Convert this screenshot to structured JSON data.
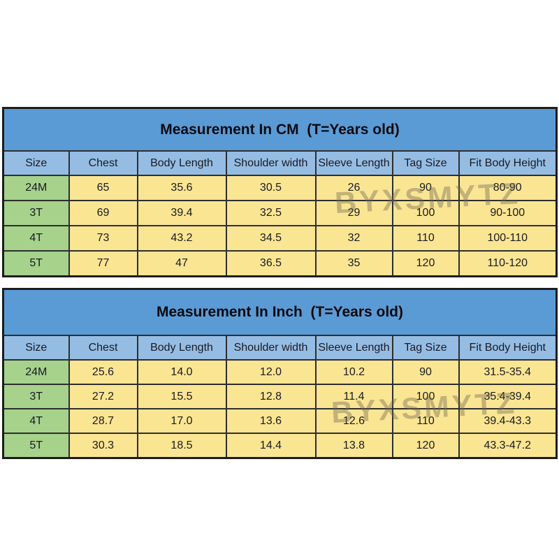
{
  "colors": {
    "title_band": "#5b9bd5",
    "header_row": "#95bde4",
    "size_column": "#a6d28c",
    "data_cell": "#fae593",
    "border": "#2e2e2e",
    "text": "#1a1a22",
    "watermark": "#6f6552"
  },
  "watermark": {
    "text": "BYXSMYTZ"
  },
  "chart_data": [
    {
      "type": "table",
      "title": "Measurement In CM  (T=Years old)",
      "columns": [
        "Size",
        "Chest",
        "Body Length",
        "Shoulder width",
        "Sleeve Length",
        "Tag Size",
        "Fit Body Height"
      ],
      "rows": [
        [
          "24M",
          "65",
          "35.6",
          "30.5",
          "26",
          "90",
          "80-90"
        ],
        [
          "3T",
          "69",
          "39.4",
          "32.5",
          "29",
          "100",
          "90-100"
        ],
        [
          "4T",
          "73",
          "43.2",
          "34.5",
          "32",
          "110",
          "100-110"
        ],
        [
          "5T",
          "77",
          "47",
          "36.5",
          "35",
          "120",
          "110-120"
        ]
      ]
    },
    {
      "type": "table",
      "title": "Measurement In Inch  (T=Years old)",
      "columns": [
        "Size",
        "Chest",
        "Body Length",
        "Shoulder width",
        "Sleeve Length",
        "Tag Size",
        "Fit Body Height"
      ],
      "rows": [
        [
          "24M",
          "25.6",
          "14.0",
          "12.0",
          "10.2",
          "90",
          "31.5-35.4"
        ],
        [
          "3T",
          "27.2",
          "15.5",
          "12.8",
          "11.4",
          "100",
          "35.4-39.4"
        ],
        [
          "4T",
          "28.7",
          "17.0",
          "13.6",
          "12.6",
          "110",
          "39.4-43.3"
        ],
        [
          "5T",
          "30.3",
          "18.5",
          "14.4",
          "13.8",
          "120",
          "43.3-47.2"
        ]
      ]
    }
  ]
}
